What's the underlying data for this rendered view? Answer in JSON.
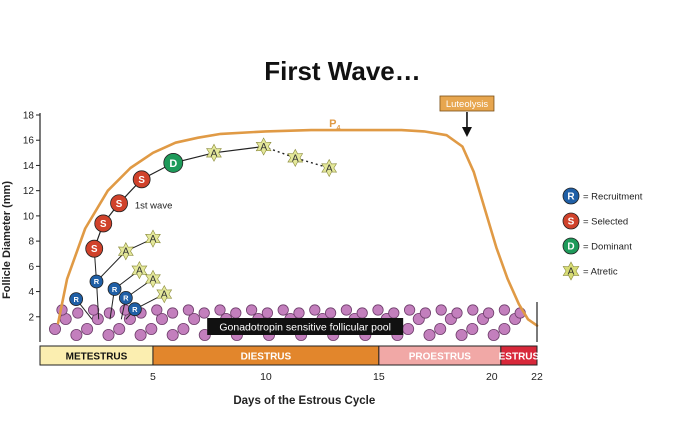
{
  "title": "First Wave…",
  "chart_data": {
    "type": "line",
    "title": "First Wave…",
    "xlabel": "Days of the Estrous Cycle",
    "ylabel": "Follicle Diameter (mm)",
    "xlim": [
      0,
      22
    ],
    "ylim": [
      0,
      18
    ],
    "x_ticks": [
      "5",
      "10",
      "15",
      "20",
      "22"
    ],
    "y_ticks": [
      "2",
      "4",
      "6",
      "8",
      "10",
      "12",
      "14",
      "16",
      "18"
    ],
    "curve_label": "P4",
    "p4_curve": {
      "x": [
        0.8,
        1.2,
        2,
        3,
        4,
        5,
        6,
        7,
        8,
        10,
        12,
        14,
        16,
        17,
        18,
        18.7,
        19.2,
        19.7,
        20.2,
        20.7,
        21.2,
        21.6,
        22
      ],
      "y": [
        1.5,
        5,
        9,
        12,
        13.8,
        15,
        15.8,
        16.2,
        16.5,
        16.7,
        16.8,
        16.8,
        16.8,
        16.7,
        16.4,
        15.5,
        13.5,
        10.5,
        7.5,
        5,
        3,
        1.8,
        1.3
      ]
    },
    "luteolysis_label": "Luteolysis",
    "luteolysis_day": 18.9,
    "wave_label": "1st wave",
    "pool_label": "Gonadotropin sensitive follicular pool",
    "phases": [
      {
        "name": "METESTRUS",
        "start": 0,
        "end": 5,
        "color": "#fbeeb0",
        "text": "#111111"
      },
      {
        "name": "DIESTRUS",
        "start": 5,
        "end": 15,
        "color": "#e2862c",
        "text": "#ffffff"
      },
      {
        "name": "PROESTRUS",
        "start": 15,
        "end": 20.4,
        "color": "#f1a8a6",
        "text": "#ffffff"
      },
      {
        "name": "ESTRUS",
        "start": 20.4,
        "end": 22,
        "color": "#d8283a",
        "text": "#ffffff"
      }
    ],
    "follicles": {
      "recruitment": [
        [
          1.6,
          3.4
        ],
        [
          2.5,
          4.8
        ],
        [
          3.3,
          4.2
        ],
        [
          3.8,
          3.5
        ],
        [
          4.2,
          2.6
        ]
      ],
      "selected": [
        [
          2.4,
          7.4
        ],
        [
          2.8,
          9.4
        ],
        [
          3.5,
          11.0
        ],
        [
          4.5,
          12.9
        ]
      ],
      "dominant": [
        [
          5.9,
          14.2
        ]
      ],
      "atretic": [
        [
          3.8,
          7.2
        ],
        [
          5.0,
          8.2
        ],
        [
          4.4,
          5.7
        ],
        [
          5.0,
          5.0
        ],
        [
          5.5,
          3.8
        ],
        [
          7.7,
          15.0
        ],
        [
          9.9,
          15.5
        ],
        [
          11.3,
          14.6
        ],
        [
          12.8,
          13.8
        ]
      ],
      "dominant_path": [
        [
          2.4,
          7.4
        ],
        [
          2.8,
          9.4
        ],
        [
          3.5,
          11.0
        ],
        [
          4.5,
          12.9
        ],
        [
          5.9,
          14.2
        ],
        [
          7.7,
          15.0
        ],
        [
          9.9,
          15.5
        ]
      ],
      "dotted_path": [
        [
          9.9,
          15.5
        ],
        [
          11.3,
          14.6
        ],
        [
          12.8,
          13.8
        ]
      ],
      "branches": [
        [
          [
            2.5,
            4.8
          ],
          [
            3.8,
            7.2
          ],
          [
            5.0,
            8.2
          ]
        ],
        [
          [
            3.3,
            4.2
          ],
          [
            4.4,
            5.7
          ]
        ],
        [
          [
            3.8,
            3.5
          ],
          [
            5.0,
            5.0
          ]
        ],
        [
          [
            4.2,
            2.6
          ],
          [
            5.5,
            3.8
          ]
        ]
      ],
      "stems": [
        [
          [
            1.6,
            3.4
          ],
          [
            2.3,
            1.8
          ]
        ],
        [
          [
            2.5,
            4.8
          ],
          [
            2.6,
            1.8
          ]
        ],
        [
          [
            3.3,
            4.2
          ],
          [
            3.1,
            1.8
          ]
        ],
        [
          [
            3.8,
            3.5
          ],
          [
            3.6,
            1.8
          ]
        ],
        [
          [
            4.2,
            2.6
          ],
          [
            3.8,
            1.8
          ]
        ],
        [
          [
            2.4,
            7.4
          ],
          [
            2.5,
            4.8
          ]
        ]
      ]
    },
    "legend": [
      {
        "symbol": "R",
        "label": "= Recruitment",
        "color": "#1f5fa6"
      },
      {
        "symbol": "S",
        "label": "= Selected",
        "color": "#d0422b"
      },
      {
        "symbol": "D",
        "label": "= Dominant",
        "color": "#1e9a5a"
      },
      {
        "symbol": "A",
        "label": "= Atretic",
        "color": "#d7dc74"
      }
    ],
    "legend_placement": "right",
    "colors": {
      "curve": "#e09a45",
      "pool_follicle": "#c37fbd",
      "atretic": "#e4e89a",
      "pool_label_bg": "#111111"
    }
  }
}
